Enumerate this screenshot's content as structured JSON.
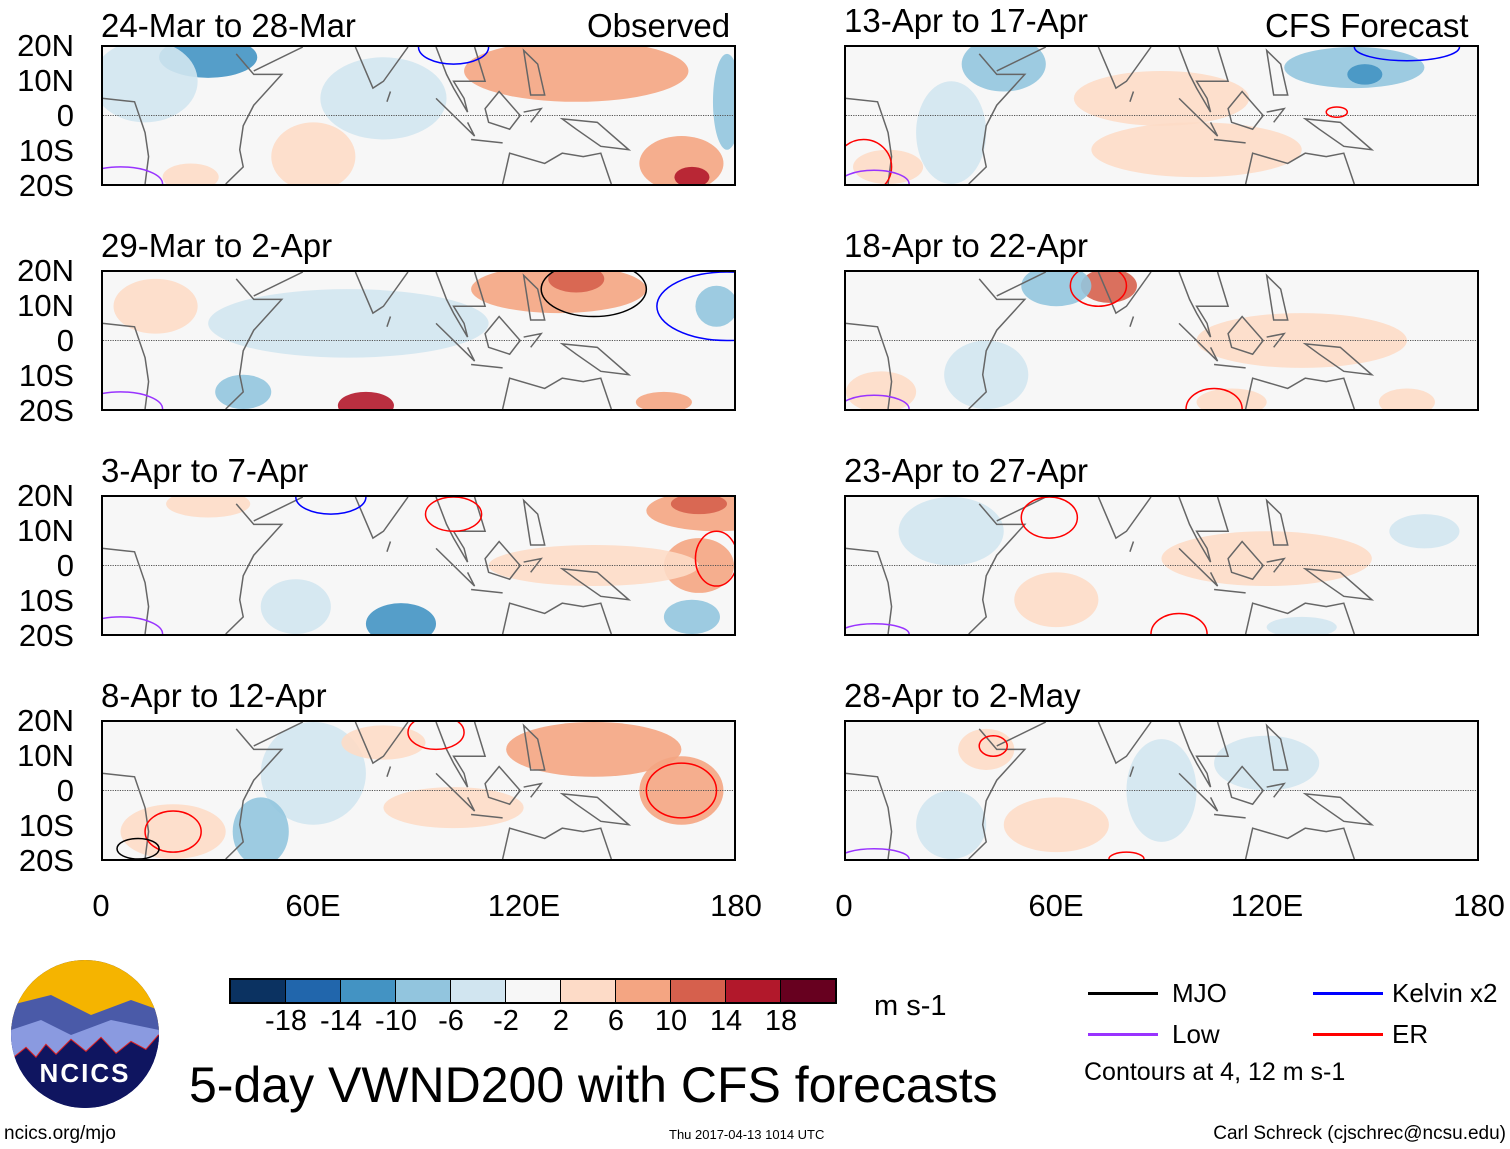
{
  "header": {
    "observed_label": "Observed",
    "forecast_label": "CFS Forecast"
  },
  "panels": {
    "left": [
      {
        "title": "24-Mar to 28-Mar"
      },
      {
        "title": "29-Mar to 2-Apr"
      },
      {
        "title": "3-Apr to 7-Apr"
      },
      {
        "title": "8-Apr to 12-Apr"
      }
    ],
    "right": [
      {
        "title": "13-Apr to 17-Apr"
      },
      {
        "title": "18-Apr to 22-Apr"
      },
      {
        "title": "23-Apr to 27-Apr"
      },
      {
        "title": "28-Apr to 2-May"
      }
    ]
  },
  "axes": {
    "lat_labels": [
      "20N",
      "10N",
      "0",
      "10S",
      "20S"
    ],
    "lon_labels": [
      "0",
      "60E",
      "120E",
      "180"
    ]
  },
  "colorbar": {
    "labels": [
      "-18",
      "-14",
      "-10",
      "-6",
      "-2",
      "2",
      "6",
      "10",
      "14",
      "18"
    ],
    "colors": [
      "#0b3261",
      "#2166ac",
      "#4393c3",
      "#92c5de",
      "#d1e5f0",
      "#f7f7f7",
      "#fddbc7",
      "#f4a582",
      "#d6604d",
      "#b2182b",
      "#67001f"
    ],
    "units": "m s-1"
  },
  "legend": {
    "items": [
      {
        "label": "MJO",
        "color": "#000000"
      },
      {
        "label": "Kelvin x2",
        "color": "#0000ff"
      },
      {
        "label": "Low",
        "color": "#9933ff"
      },
      {
        "label": "ER",
        "color": "#ff0000"
      }
    ],
    "contours_note": "Contours at 4, 12 m s-1"
  },
  "logo": {
    "text": "NCICS"
  },
  "footer": {
    "title": "5-day VWND200 with CFS forecasts",
    "url": "ncics.org/mjo",
    "timestamp": "Thu 2017-04-13 1014 UTC",
    "credit": "Carl Schreck (cjschrec@ncsu.edu)"
  }
}
